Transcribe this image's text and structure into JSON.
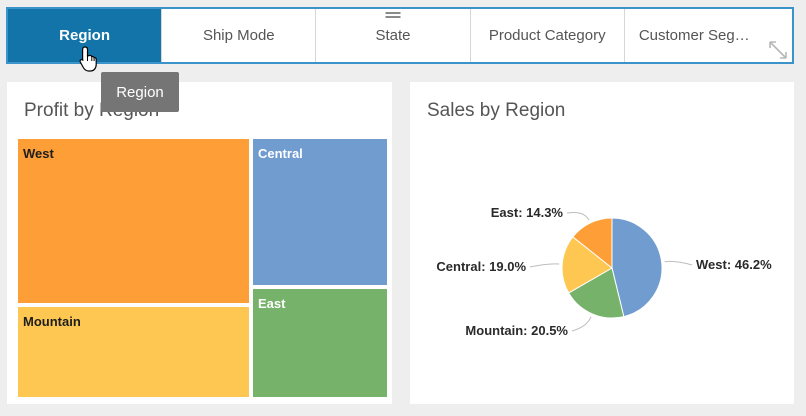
{
  "tabs": [
    {
      "label": "Region",
      "active": true
    },
    {
      "label": "Ship Mode",
      "active": false
    },
    {
      "label": "State",
      "active": false
    },
    {
      "label": "Product Category",
      "active": false
    },
    {
      "label": "Customer Seg…",
      "active": false
    }
  ],
  "tooltip": "Region",
  "profit_panel": {
    "title": "Profit by Region"
  },
  "sales_panel": {
    "title": "Sales by Region"
  },
  "chart_data": [
    {
      "type": "treemap",
      "title": "Profit by Region",
      "items": [
        {
          "label": "West",
          "color": "#fd9f36"
        },
        {
          "label": "Central",
          "color": "#709cd0"
        },
        {
          "label": "Mountain",
          "color": "#fec752"
        },
        {
          "label": "East",
          "color": "#77b26a"
        }
      ]
    },
    {
      "type": "pie",
      "title": "Sales by Region",
      "slices": [
        {
          "label": "West",
          "value": 46.2,
          "text": "West: 46.2%",
          "color": "#709cd0"
        },
        {
          "label": "Mountain",
          "value": 20.5,
          "text": "Mountain: 20.5%",
          "color": "#77b26a"
        },
        {
          "label": "Central",
          "value": 19.0,
          "text": "Central: 19.0%",
          "color": "#fec752"
        },
        {
          "label": "East",
          "value": 14.3,
          "text": "East: 14.3%",
          "color": "#fd9f36"
        }
      ]
    }
  ]
}
